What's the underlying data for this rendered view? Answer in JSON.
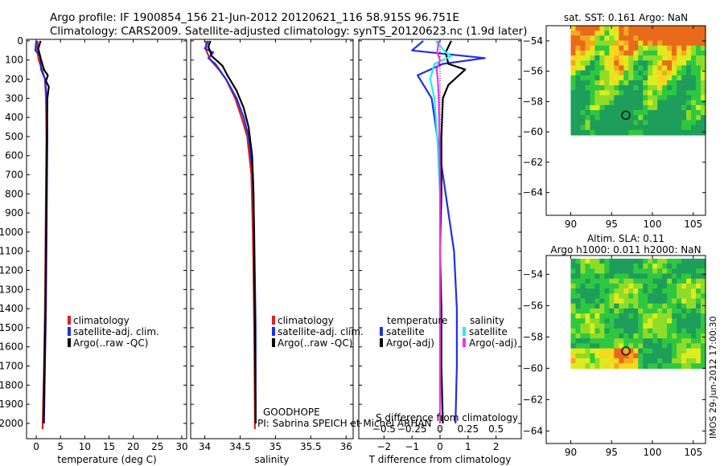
{
  "title": {
    "line1": "Argo profile: IF 1900854_156 21-Jun-2012 20120621_116 58.915S 96.751E",
    "line2": "Climatology: CARS2009. Satellite-adjusted climatology: synTS_20120623.nc (1.9d later)"
  },
  "colors": {
    "climatology": "#e02020",
    "satellite": "#1f2fe6",
    "argo": "#000000",
    "sat_salinity": "#22eeee",
    "argo_salinity": "#ee33ee"
  },
  "annotations": {
    "float_name": "GOODHOPE",
    "pi": "PI: Sabrina SPEICH et Michel ARHAN",
    "footer": "IMOS 29-Jun-2012 17:00:30"
  },
  "chart_data": [
    {
      "id": "temperature",
      "type": "line",
      "xlabel": "temperature (deg C)",
      "ylabel": "",
      "xlim": [
        -2,
        31
      ],
      "ylim": [
        2080,
        -8
      ],
      "xticks": [
        0,
        5,
        10,
        15,
        20,
        25,
        30
      ],
      "yticks": [
        0,
        100,
        200,
        300,
        400,
        500,
        600,
        700,
        800,
        900,
        1000,
        1100,
        1200,
        1300,
        1400,
        1500,
        1600,
        1700,
        1800,
        1900,
        2000
      ],
      "legend": [
        "climatology",
        "satellite-adj. clim.",
        "Argo(..raw -QC)"
      ],
      "series": [
        {
          "name": "climatology",
          "color_key": "climatology",
          "points": [
            [
              0.3,
              0
            ],
            [
              0.2,
              50
            ],
            [
              0.5,
              100
            ],
            [
              1.2,
              150
            ],
            [
              1.8,
              200
            ],
            [
              2.0,
              300
            ],
            [
              2.1,
              500
            ],
            [
              2.0,
              800
            ],
            [
              1.9,
              1100
            ],
            [
              1.8,
              1400
            ],
            [
              1.6,
              1700
            ],
            [
              1.3,
              2030
            ]
          ]
        },
        {
          "name": "satellite-adj. clim.",
          "color_key": "satellite",
          "points": [
            [
              0.0,
              0
            ],
            [
              -0.2,
              50
            ],
            [
              0.8,
              80
            ],
            [
              1.0,
              150
            ],
            [
              1.8,
              200
            ],
            [
              2.2,
              300
            ],
            [
              2.3,
              500
            ],
            [
              2.2,
              800
            ],
            [
              2.1,
              1100
            ],
            [
              2.0,
              1400
            ],
            [
              1.8,
              1700
            ],
            [
              1.6,
              2000
            ]
          ]
        },
        {
          "name": "Argo(..raw -QC)",
          "color_key": "argo",
          "points": [
            [
              0.9,
              0
            ],
            [
              0.4,
              40
            ],
            [
              1.0,
              100
            ],
            [
              1.6,
              150
            ],
            [
              2.4,
              180
            ],
            [
              2.0,
              210
            ],
            [
              2.6,
              240
            ],
            [
              2.3,
              300
            ],
            [
              2.2,
              500
            ],
            [
              2.1,
              800
            ],
            [
              2.0,
              1100
            ],
            [
              1.9,
              1400
            ],
            [
              1.7,
              1700
            ],
            [
              1.5,
              2000
            ]
          ]
        }
      ]
    },
    {
      "id": "salinity",
      "type": "line",
      "xlabel": "salinity",
      "xlim": [
        33.8,
        36.1
      ],
      "ylim": [
        2080,
        -8
      ],
      "xticks": [
        34,
        34.5,
        35,
        35.5,
        36
      ],
      "xticklabels": [
        "34",
        "34.5",
        "35",
        "35.5",
        "36"
      ],
      "legend": [
        "climatology",
        "satellite-adj. clim.",
        "Argo(..raw -QC)"
      ],
      "series": [
        {
          "name": "climatology",
          "color_key": "climatology",
          "points": [
            [
              34.02,
              0
            ],
            [
              34.02,
              50
            ],
            [
              34.08,
              100
            ],
            [
              34.2,
              150
            ],
            [
              34.3,
              200
            ],
            [
              34.43,
              300
            ],
            [
              34.52,
              400
            ],
            [
              34.6,
              500
            ],
            [
              34.66,
              700
            ],
            [
              34.68,
              1000
            ],
            [
              34.7,
              1500
            ],
            [
              34.71,
              2030
            ]
          ]
        },
        {
          "name": "satellite-adj. clim.",
          "color_key": "satellite",
          "points": [
            [
              34.05,
              0
            ],
            [
              34.0,
              40
            ],
            [
              34.12,
              60
            ],
            [
              34.05,
              90
            ],
            [
              34.15,
              120
            ],
            [
              34.3,
              200
            ],
            [
              34.45,
              300
            ],
            [
              34.55,
              400
            ],
            [
              34.62,
              500
            ],
            [
              34.68,
              700
            ],
            [
              34.7,
              1000
            ],
            [
              34.72,
              1500
            ],
            [
              34.72,
              2000
            ]
          ]
        },
        {
          "name": "Argo(..raw -QC)",
          "color_key": "argo",
          "points": [
            [
              34.08,
              0
            ],
            [
              34.05,
              30
            ],
            [
              34.1,
              80
            ],
            [
              34.25,
              130
            ],
            [
              34.32,
              180
            ],
            [
              34.45,
              260
            ],
            [
              34.55,
              350
            ],
            [
              34.62,
              450
            ],
            [
              34.67,
              600
            ],
            [
              34.69,
              800
            ],
            [
              34.7,
              1100
            ],
            [
              34.71,
              1500
            ],
            [
              34.72,
              2000
            ]
          ]
        }
      ]
    },
    {
      "id": "difference",
      "type": "line",
      "xlabel": "T difference from climatology",
      "xlabel_top": "S difference from climatology",
      "xlim": [
        -2.9,
        2.9
      ],
      "ylim": [
        2080,
        -8
      ],
      "xticks": [
        -2,
        -1,
        0,
        1,
        2
      ],
      "xticklabels": [
        "−2",
        "−1",
        "0",
        "1",
        "2"
      ],
      "xticks_s": [
        -0.5,
        -0.25,
        0,
        0.25,
        0.5
      ],
      "xticklabels_s": [
        "−0.5",
        "−0.25",
        "0",
        "0.25",
        "0.5"
      ],
      "legend_groups": {
        "temperature": "temperature",
        "salinity": "salinity"
      },
      "legend": [
        "satellite",
        "Argo(-adj)",
        "satellite",
        "Argo(-adj)"
      ],
      "series": [
        {
          "name": "T satellite",
          "color_key": "satellite",
          "points": [
            [
              -0.6,
              0
            ],
            [
              -1.0,
              50
            ],
            [
              1.6,
              90
            ],
            [
              0.1,
              120
            ],
            [
              -0.8,
              180
            ],
            [
              -0.3,
              300
            ],
            [
              -0.1,
              500
            ],
            [
              0.2,
              800
            ],
            [
              0.5,
              1100
            ],
            [
              0.6,
              1400
            ],
            [
              0.6,
              1700
            ],
            [
              0.55,
              2000
            ]
          ]
        },
        {
          "name": "T Argo(-adj)",
          "color_key": "argo",
          "points": [
            [
              0.4,
              0
            ],
            [
              0.2,
              60
            ],
            [
              0.3,
              120
            ],
            [
              0.9,
              150
            ],
            [
              0.6,
              190
            ],
            [
              0.3,
              230
            ],
            [
              0.1,
              300
            ],
            [
              0.05,
              500
            ],
            [
              0.05,
              800
            ],
            [
              0.0,
              1100
            ],
            [
              0.05,
              1400
            ],
            [
              0.05,
              1700
            ],
            [
              0.1,
              2000
            ]
          ]
        },
        {
          "name": "S satellite",
          "color_key": "sat_salinity",
          "points": [
            [
              -0.15,
              0
            ],
            [
              0.2,
              60
            ],
            [
              0.4,
              80
            ],
            [
              -0.2,
              120
            ],
            [
              -0.35,
              200
            ],
            [
              -0.2,
              300
            ],
            [
              -0.1,
              500
            ],
            [
              0.0,
              800
            ],
            [
              0.0,
              1100
            ],
            [
              0.0,
              1400
            ],
            [
              0.0,
              1700
            ],
            [
              0.0,
              2000
            ]
          ]
        },
        {
          "name": "S Argo(-adj)",
          "color_key": "argo_salinity",
          "points": [
            [
              -0.05,
              0
            ],
            [
              -0.1,
              60
            ],
            [
              0.0,
              100
            ],
            [
              -0.12,
              150
            ],
            [
              -0.08,
              200
            ],
            [
              -0.05,
              300
            ],
            [
              -0.02,
              500
            ],
            [
              0.0,
              800
            ],
            [
              0.0,
              1100
            ],
            [
              0.0,
              1400
            ],
            [
              0.0,
              1700
            ],
            [
              0.0,
              2000
            ]
          ]
        }
      ]
    },
    {
      "id": "sst_map",
      "type": "heatmap",
      "title": "sat. SST: 0.161  Argo: NaN",
      "xlim": [
        87,
        106.5
      ],
      "ylim": [
        -65.5,
        -53
      ],
      "xticks": [
        90,
        95,
        100,
        105
      ],
      "yticks": [
        -54,
        -56,
        -58,
        -60,
        -62,
        -64
      ],
      "yticklabels": [
        "−54",
        "−56",
        "−58",
        "−60",
        "−62",
        "−64"
      ],
      "data_extent": {
        "lon": [
          90,
          106.5
        ],
        "lat": [
          -60.2,
          -53
        ]
      },
      "marker": {
        "lon": 96.75,
        "lat": -58.9
      }
    },
    {
      "id": "sla_map",
      "type": "heatmap",
      "title_lines": [
        "Altim. SLA: 0.11",
        "Argo h1000: 0.011 h2000: NaN"
      ],
      "xlim": [
        87,
        106.5
      ],
      "ylim": [
        -64.8,
        -52.8
      ],
      "xticks": [
        90,
        95,
        100,
        105
      ],
      "yticks": [
        -54,
        -56,
        -58,
        -60,
        -62,
        -64
      ],
      "yticklabels": [
        "−54",
        "−56",
        "−58",
        "−60",
        "−62",
        "−64"
      ],
      "data_extent": {
        "lon": [
          90,
          106.5
        ],
        "lat": [
          -60,
          -53
        ]
      },
      "marker": {
        "lon": 96.75,
        "lat": -58.9
      }
    }
  ]
}
